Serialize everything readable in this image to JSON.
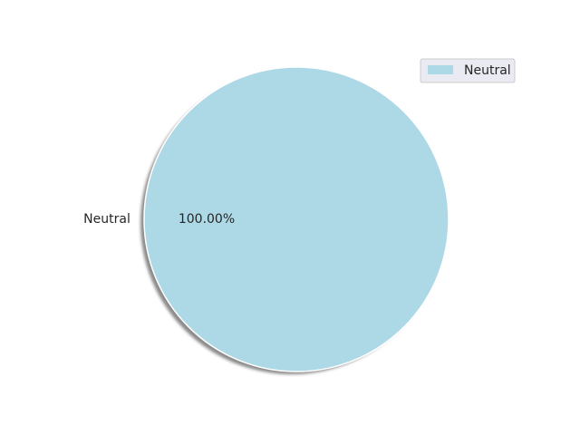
{
  "chart_data": {
    "type": "pie",
    "title": "",
    "categories": [
      "Neutral"
    ],
    "values": [
      100.0
    ],
    "percent_labels": [
      "100.00%"
    ],
    "colors": [
      "#add8e6"
    ],
    "shadow": true,
    "legend": {
      "placement": "top-right",
      "entries": [
        "Neutral"
      ]
    }
  }
}
